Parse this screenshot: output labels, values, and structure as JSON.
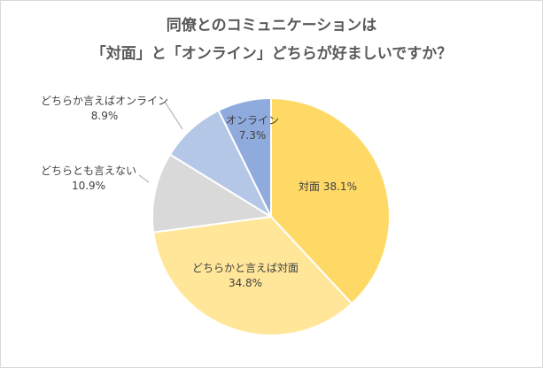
{
  "chart_data": {
    "type": "pie",
    "title_lines": [
      "同僚とのコミュニケーションは",
      "「対面」と「オンライン」どちらが好ましいですか？"
    ],
    "start_angle_deg": 0,
    "direction": "clockwise",
    "slices": [
      {
        "label": "対面",
        "value_text": "38.1%",
        "value": 38.1,
        "color": "#ffd966"
      },
      {
        "label": "どちらかと言えば対面",
        "value_text": "34.8%",
        "value": 34.8,
        "color": "#ffe699"
      },
      {
        "label": "どちらとも言えない",
        "value_text": "10.9%",
        "value": 10.9,
        "color": "#d9d9d9"
      },
      {
        "label": "どちらか言えばオンライン",
        "value_text": "8.9%",
        "value": 8.9,
        "color": "#b4c7e7"
      },
      {
        "label": "オンライン",
        "value_text": "7.3%",
        "value": 7.3,
        "color": "#8faadc"
      }
    ]
  }
}
